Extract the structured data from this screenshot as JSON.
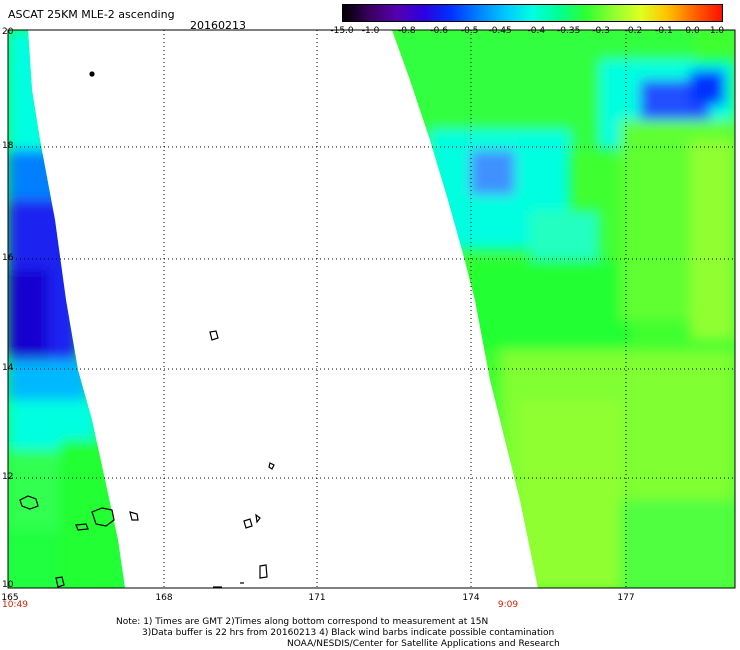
{
  "header": {
    "title": "ASCAT 25KM MLE-2 ascending",
    "date": "20160213"
  },
  "colorbar": {
    "labels": [
      "-15.0",
      "-1.0",
      "-0.8",
      "-0.6",
      "-0.5",
      "-0.45",
      "-0.4",
      "-0.35",
      "-0.3",
      "-0.2",
      "-0.1",
      "0.0",
      "1.0"
    ],
    "colors": [
      "#000000",
      "#3a0060",
      "#5500b0",
      "#2a00e0",
      "#0033ff",
      "#0080ff",
      "#00c8ff",
      "#00ffe0",
      "#00ff90",
      "#30ff30",
      "#90ff30",
      "#e0ff20",
      "#ffc000",
      "#ff6000",
      "#ff1000"
    ]
  },
  "axes": {
    "lat_ticks": [
      "20",
      "18",
      "16",
      "14",
      "12",
      "10"
    ],
    "lon_ticks": [
      "165",
      "168",
      "171",
      "174",
      "177"
    ],
    "time_labels": [
      "10:49",
      "9:09"
    ]
  },
  "colors": {
    "grid": "#000000",
    "land": "#000000",
    "time_label": "#cc2200"
  },
  "notes": {
    "line1": "Note: 1) Times are GMT 2)Times along bottom correspond to measurement at 15N",
    "line2": "3)Data buffer is 22 hrs from 20160213 4) Black wind barbs indicate possible contamination",
    "line3": "NOAA/NESDIS/Center for Satellite Applications and Research"
  }
}
